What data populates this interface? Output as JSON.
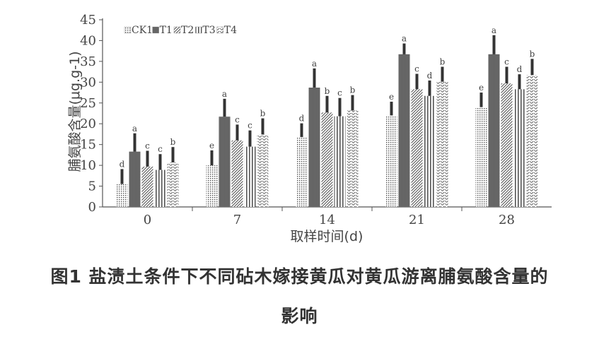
{
  "chart_data": {
    "type": "bar",
    "ylabel": "脯氨酸含量(μg.g-1)",
    "xlabel": "取样时间(d)",
    "ylim": [
      0,
      45
    ],
    "yticks": [
      0,
      5,
      10,
      15,
      20,
      25,
      30,
      35,
      40,
      45
    ],
    "categories": [
      "0",
      "7",
      "14",
      "21",
      "28"
    ],
    "legend_position": "top-left",
    "series": [
      {
        "name": "CK1",
        "pattern": "dots",
        "values": [
          5.5,
          10.0,
          16.8,
          22.0,
          24.0
        ],
        "errors": [
          3.6,
          3.6,
          3.3,
          3.3,
          3.5
        ],
        "letters": [
          "d",
          "e",
          "d",
          "e",
          "e"
        ]
      },
      {
        "name": "T1",
        "pattern": "dense",
        "values": [
          13.3,
          21.7,
          28.7,
          36.7,
          36.7
        ],
        "errors": [
          4.4,
          4.3,
          4.6,
          2.6,
          4.6
        ],
        "letters": [
          "a",
          "a",
          "a",
          "a",
          "a"
        ]
      },
      {
        "name": "T2",
        "pattern": "diagonal",
        "values": [
          9.7,
          16.0,
          22.7,
          28.3,
          29.7
        ],
        "errors": [
          3.8,
          3.8,
          4.0,
          3.7,
          4.0
        ],
        "letters": [
          "c",
          "c",
          "b",
          "c",
          "c"
        ]
      },
      {
        "name": "T3",
        "pattern": "vertical",
        "values": [
          8.9,
          14.5,
          21.8,
          26.7,
          28.3
        ],
        "errors": [
          3.8,
          3.9,
          4.4,
          3.7,
          3.6
        ],
        "letters": [
          "c",
          "c",
          "c",
          "d",
          "d"
        ]
      },
      {
        "name": "T4",
        "pattern": "wave",
        "values": [
          10.7,
          17.4,
          23.2,
          30.1,
          31.7
        ],
        "errors": [
          3.7,
          3.9,
          3.7,
          3.6,
          3.9
        ],
        "letters": [
          "b",
          "b",
          "b",
          "b",
          "b"
        ]
      }
    ]
  },
  "caption": {
    "line1": "图1   盐渍土条件下不同砧木嫁接黄瓜对黄瓜游离脯氨酸含量的",
    "line2": "影响"
  },
  "colors": {
    "axis": "#555555",
    "bar": "#555555",
    "text": "#444444"
  }
}
